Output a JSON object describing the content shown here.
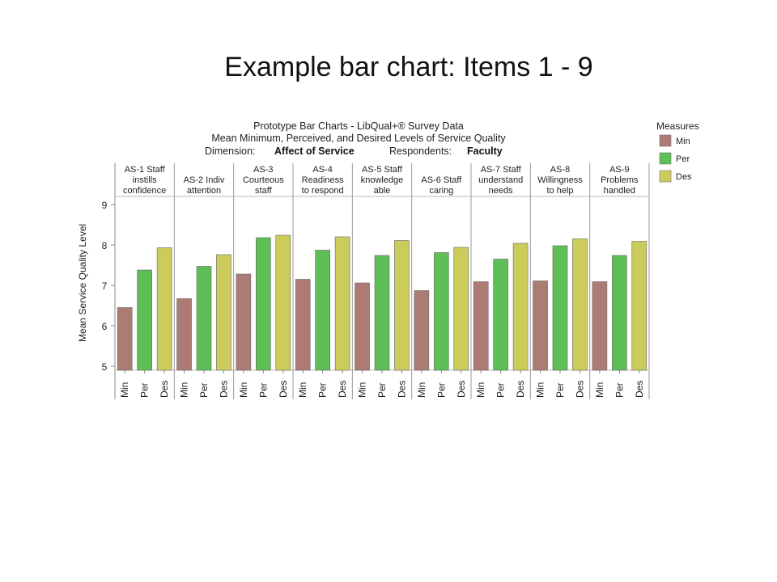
{
  "slide_title": "Example bar chart: Items 1 - 9",
  "chart_data": {
    "type": "bar",
    "title": "Prototype Bar Charts - LibQual+® Survey Data",
    "subtitle": "Mean Minimum, Perceived, and Desired Levels of Service Quality",
    "dimension_label": "Dimension:",
    "dimension_value": "Affect of Service",
    "respondents_label": "Respondents:",
    "respondents_value": "Faculty",
    "ylabel": "Mean Service Quality Level",
    "ylim": [
      4.9,
      9.2
    ],
    "yticks": [
      5,
      6,
      7,
      8,
      9
    ],
    "measures": [
      "Min",
      "Per",
      "Des"
    ],
    "legend": {
      "title": "Measures",
      "position": "top-right",
      "items": [
        {
          "label": "Min",
          "color": "#ac7c74"
        },
        {
          "label": "Per",
          "color": "#5dbf56"
        },
        {
          "label": "Des",
          "color": "#cccc5c"
        }
      ]
    },
    "grid": false,
    "categories": [
      {
        "label": [
          "AS-1 Staff",
          "instills",
          "confidence"
        ],
        "values": [
          6.45,
          7.38,
          7.93
        ]
      },
      {
        "label": [
          "AS-2 Indiv",
          "attention"
        ],
        "values": [
          6.67,
          7.47,
          7.76
        ]
      },
      {
        "label": [
          "AS-3",
          "Courteous",
          "staff"
        ],
        "values": [
          7.28,
          8.18,
          8.24
        ]
      },
      {
        "label": [
          "AS-4",
          "Readiness",
          "to respond"
        ],
        "values": [
          7.15,
          7.87,
          8.2
        ]
      },
      {
        "label": [
          "AS-5 Staff",
          "knowledge",
          "able"
        ],
        "values": [
          7.06,
          7.74,
          8.11
        ]
      },
      {
        "label": [
          "AS-6 Staff",
          "caring"
        ],
        "values": [
          6.87,
          7.81,
          7.94
        ]
      },
      {
        "label": [
          "AS-7 Staff",
          "understand",
          "needs"
        ],
        "values": [
          7.09,
          7.65,
          8.04
        ]
      },
      {
        "label": [
          "AS-8",
          "Willingness",
          "to help"
        ],
        "values": [
          7.11,
          7.98,
          8.15
        ]
      },
      {
        "label": [
          "AS-9",
          "Problems",
          "handled"
        ],
        "values": [
          7.09,
          7.74,
          8.09
        ]
      }
    ]
  }
}
